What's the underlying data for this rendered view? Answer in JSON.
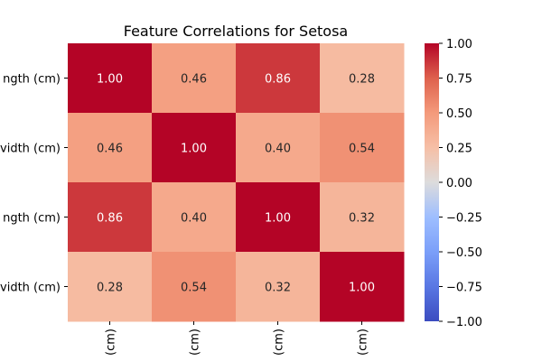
{
  "chart_data": {
    "type": "heatmap",
    "title": "Feature Correlations for Setosa",
    "row_labels": [
      "ngth (cm)",
      "vidth (cm)",
      "ngth (cm)",
      "vidth (cm)"
    ],
    "col_labels": [
      "(cm)",
      "(cm)",
      "(cm)",
      "(cm)"
    ],
    "values": [
      [
        1.0,
        0.46,
        0.86,
        0.28
      ],
      [
        0.46,
        1.0,
        0.4,
        0.54
      ],
      [
        0.86,
        0.4,
        1.0,
        0.32
      ],
      [
        0.28,
        0.54,
        0.32,
        1.0
      ]
    ],
    "cell_labels": [
      [
        "1.00",
        "0.46",
        "0.86",
        "0.28"
      ],
      [
        "0.46",
        "1.00",
        "0.40",
        "0.54"
      ],
      [
        "0.86",
        "0.40",
        "1.00",
        "0.32"
      ],
      [
        "0.28",
        "0.54",
        "0.32",
        "1.00"
      ]
    ],
    "colormap": "coolwarm",
    "vmin": -1.0,
    "vmax": 1.0,
    "colorbar_ticks": [
      1.0,
      0.75,
      0.5,
      0.25,
      0.0,
      -0.25,
      -0.5,
      -0.75,
      -1.0
    ],
    "colorbar_tick_labels": [
      "1.00",
      "0.75",
      "0.50",
      "0.25",
      "0.00",
      "−0.25",
      "−0.50",
      "−0.75",
      "−1.00"
    ],
    "grid": false,
    "legend": "colorbar-right"
  }
}
